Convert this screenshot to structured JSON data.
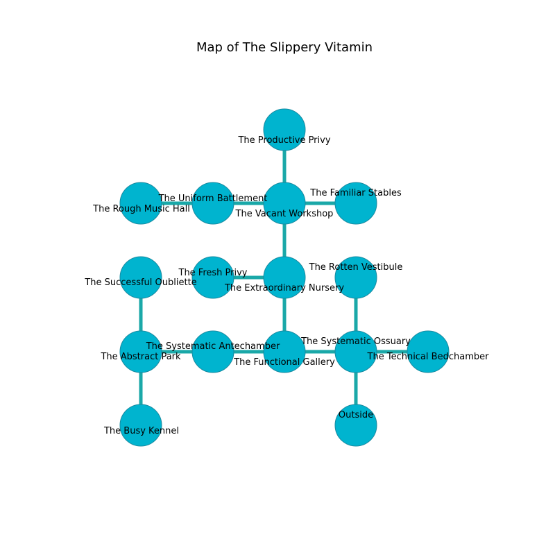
{
  "title": "Map of The Slippery Vitamin",
  "colors": {
    "node": "#00b4cf",
    "node_border": "#1a8aa0",
    "edge": "#1aa8a8"
  },
  "rooms": [
    {
      "id": "productive-privy",
      "name": "The Productive Privy"
    },
    {
      "id": "rough-music-hall",
      "name": "The Rough Music Hall"
    },
    {
      "id": "uniform-battlement",
      "name": "The Uniform Battlement"
    },
    {
      "id": "vacant-workshop",
      "name": "The Vacant Workshop"
    },
    {
      "id": "familiar-stables",
      "name": "The Familiar Stables"
    },
    {
      "id": "successful-oubliette",
      "name": "The Successful Oubliette"
    },
    {
      "id": "fresh-privy",
      "name": "The Fresh Privy"
    },
    {
      "id": "extraordinary-nursery",
      "name": "The Extraordinary Nursery"
    },
    {
      "id": "rotten-vestibule",
      "name": "The Rotten Vestibule"
    },
    {
      "id": "abstract-park",
      "name": "The Abstract Park"
    },
    {
      "id": "systematic-antechamber",
      "name": "The Systematic Antechamber"
    },
    {
      "id": "functional-gallery",
      "name": "The Functional Gallery"
    },
    {
      "id": "systematic-ossuary",
      "name": "The Systematic Ossuary"
    },
    {
      "id": "technical-bedchamber",
      "name": "The Technical Bedchamber"
    },
    {
      "id": "busy-kennel",
      "name": "The Busy Kennel"
    },
    {
      "id": "outside",
      "name": "Outside"
    }
  ],
  "connections": [
    [
      "productive-privy",
      "vacant-workshop"
    ],
    [
      "rough-music-hall",
      "uniform-battlement"
    ],
    [
      "uniform-battlement",
      "vacant-workshop"
    ],
    [
      "vacant-workshop",
      "familiar-stables"
    ],
    [
      "vacant-workshop",
      "extraordinary-nursery"
    ],
    [
      "fresh-privy",
      "extraordinary-nursery"
    ],
    [
      "extraordinary-nursery",
      "functional-gallery"
    ],
    [
      "successful-oubliette",
      "abstract-park"
    ],
    [
      "abstract-park",
      "systematic-antechamber"
    ],
    [
      "systematic-antechamber",
      "functional-gallery"
    ],
    [
      "functional-gallery",
      "systematic-ossuary"
    ],
    [
      "rotten-vestibule",
      "systematic-ossuary"
    ],
    [
      "systematic-ossuary",
      "technical-bedchamber"
    ],
    [
      "systematic-ossuary",
      "outside"
    ],
    [
      "abstract-park",
      "busy-kennel"
    ]
  ]
}
